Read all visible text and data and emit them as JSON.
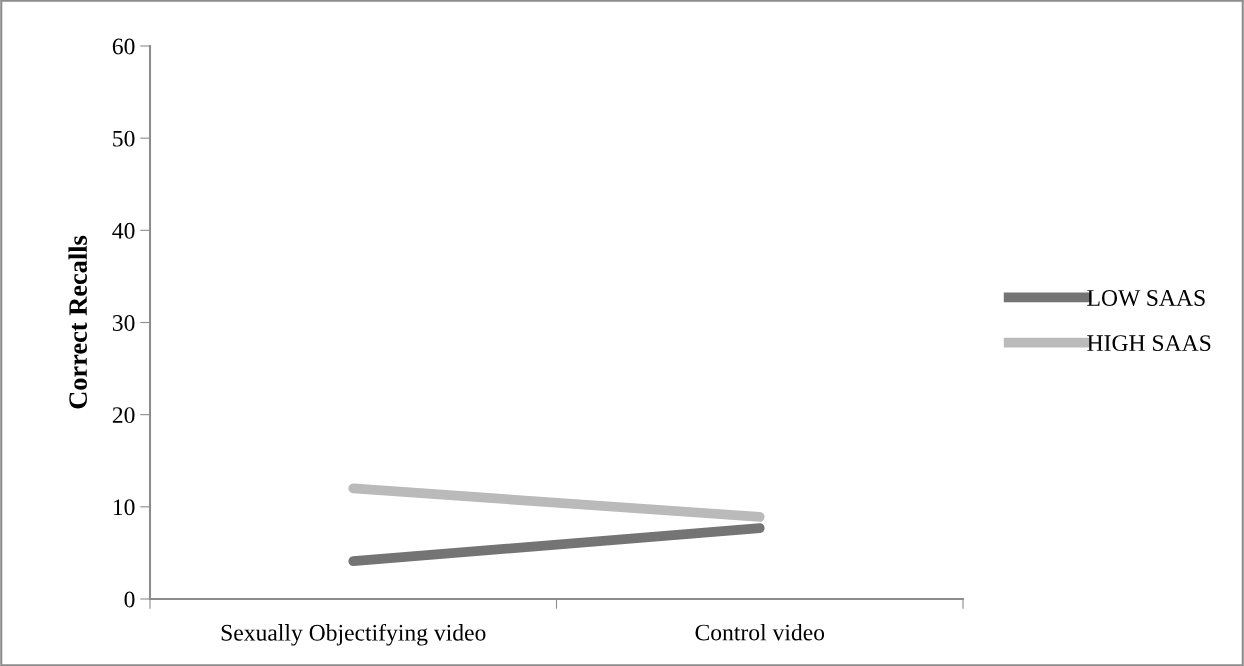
{
  "chart_data": {
    "type": "line",
    "ylabel": "Correct Recalls",
    "categories": [
      "Sexually Objectifying video",
      "Control video"
    ],
    "series": [
      {
        "name": "LOW SAAS",
        "color": "#747474",
        "values": [
          4.1,
          7.7
        ]
      },
      {
        "name": "HIGH SAAS",
        "color": "#bababa",
        "values": [
          12.0,
          8.9
        ]
      }
    ],
    "ylim": [
      0,
      60
    ],
    "yticks": [
      0,
      10,
      20,
      30,
      40,
      50,
      60
    ],
    "grid": false,
    "legend": "right",
    "marker": "none",
    "line_style": "solid"
  }
}
